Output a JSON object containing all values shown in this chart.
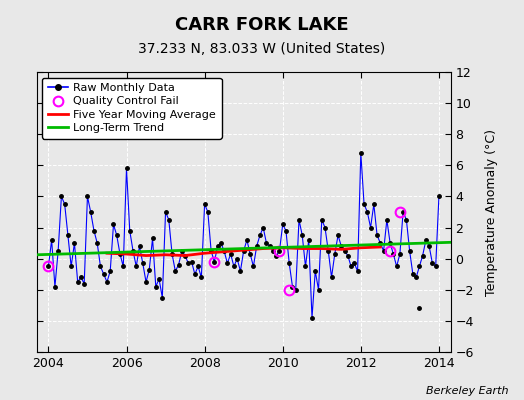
{
  "title": "CARR FORK LAKE",
  "subtitle": "37.233 N, 83.033 W (United States)",
  "ylabel": "Temperature Anomaly (°C)",
  "credit": "Berkeley Earth",
  "ylim": [
    -6,
    12
  ],
  "xlim": [
    2003.7,
    2014.3
  ],
  "yticks": [
    -6,
    -4,
    -2,
    0,
    2,
    4,
    6,
    8,
    10,
    12
  ],
  "xticks": [
    2004,
    2006,
    2008,
    2010,
    2012,
    2014
  ],
  "bg_color": "#e8e8e8",
  "raw_x": [
    2004.0,
    2004.083,
    2004.167,
    2004.25,
    2004.333,
    2004.417,
    2004.5,
    2004.583,
    2004.667,
    2004.75,
    2004.833,
    2004.917,
    2005.0,
    2005.083,
    2005.167,
    2005.25,
    2005.333,
    2005.417,
    2005.5,
    2005.583,
    2005.667,
    2005.75,
    2005.833,
    2005.917,
    2006.0,
    2006.083,
    2006.167,
    2006.25,
    2006.333,
    2006.417,
    2006.5,
    2006.583,
    2006.667,
    2006.75,
    2006.833,
    2006.917,
    2007.0,
    2007.083,
    2007.167,
    2007.25,
    2007.333,
    2007.417,
    2007.5,
    2007.583,
    2007.667,
    2007.75,
    2007.833,
    2007.917,
    2008.0,
    2008.083,
    2008.167,
    2008.25,
    2008.333,
    2008.417,
    2008.5,
    2008.583,
    2008.667,
    2008.75,
    2008.833,
    2008.917,
    2009.0,
    2009.083,
    2009.167,
    2009.25,
    2009.333,
    2009.417,
    2009.5,
    2009.583,
    2009.667,
    2009.75,
    2009.833,
    2009.917,
    2010.0,
    2010.083,
    2010.167,
    2010.25,
    2010.333,
    2010.417,
    2010.5,
    2010.583,
    2010.667,
    2010.75,
    2010.833,
    2010.917,
    2011.0,
    2011.083,
    2011.167,
    2011.25,
    2011.333,
    2011.417,
    2011.5,
    2011.583,
    2011.667,
    2011.75,
    2011.833,
    2011.917,
    2012.0,
    2012.083,
    2012.167,
    2012.25,
    2012.333,
    2012.417,
    2012.5,
    2012.583,
    2012.667,
    2012.75,
    2012.833,
    2012.917,
    2013.0,
    2013.083,
    2013.167,
    2013.25,
    2013.333,
    2013.417,
    2013.5,
    2013.583,
    2013.667,
    2013.75,
    2013.833,
    2013.917,
    2014.0
  ],
  "raw_y": [
    -0.5,
    1.2,
    -1.8,
    0.5,
    4.0,
    3.5,
    1.5,
    -0.5,
    1.0,
    -1.5,
    -1.2,
    -1.6,
    4.0,
    3.0,
    1.8,
    1.0,
    -0.5,
    -1.0,
    -1.5,
    -0.8,
    2.2,
    1.5,
    0.3,
    -0.5,
    5.8,
    1.8,
    0.5,
    -0.5,
    0.8,
    -0.3,
    -1.5,
    -0.7,
    1.3,
    -1.8,
    -1.3,
    -2.5,
    3.0,
    2.5,
    0.3,
    -0.8,
    -0.4,
    0.5,
    0.2,
    -0.3,
    -0.2,
    -1.0,
    -0.5,
    -1.2,
    3.5,
    3.0,
    0.5,
    -0.2,
    0.8,
    1.0,
    0.5,
    -0.3,
    0.3,
    -0.5,
    0.0,
    -0.8,
    0.5,
    1.2,
    0.3,
    -0.5,
    0.8,
    1.5,
    2.0,
    1.0,
    0.8,
    0.5,
    0.2,
    0.5,
    2.2,
    1.8,
    -0.3,
    -1.8,
    -2.0,
    2.5,
    1.5,
    -0.5,
    1.2,
    -3.8,
    -0.8,
    -2.0,
    2.5,
    2.0,
    0.5,
    -1.2,
    0.3,
    1.5,
    0.8,
    0.5,
    0.2,
    -0.5,
    -0.3,
    -0.8,
    6.8,
    3.5,
    3.0,
    2.0,
    3.5,
    1.5,
    1.0,
    0.5,
    2.5,
    1.0,
    0.3,
    -0.5,
    0.3,
    3.0,
    2.5,
    0.5,
    -1.0,
    -1.2,
    -0.5,
    0.2,
    1.2,
    0.8,
    -0.3,
    -0.5,
    4.0
  ],
  "qc_fail_x": [
    2004.0,
    2008.25,
    2009.917,
    2010.167,
    2012.75,
    2013.0
  ],
  "qc_fail_y": [
    -0.5,
    -0.2,
    0.5,
    -2.0,
    0.5,
    3.0
  ],
  "isolated_x": [
    2013.5
  ],
  "isolated_y": [
    -3.2
  ],
  "moving_avg_x": [
    2005.5,
    2006.0,
    2006.5,
    2007.0,
    2007.5,
    2008.0,
    2008.5,
    2009.0,
    2009.5,
    2010.0,
    2010.5,
    2011.0,
    2011.5,
    2012.0,
    2012.5
  ],
  "moving_avg_y": [
    0.35,
    0.3,
    0.2,
    0.25,
    0.2,
    0.35,
    0.45,
    0.55,
    0.65,
    0.7,
    0.65,
    0.65,
    0.6,
    0.7,
    0.75
  ],
  "trend_x": [
    2003.7,
    2014.3
  ],
  "trend_y": [
    0.25,
    1.05
  ],
  "raw_color": "#0000ff",
  "raw_marker_color": "#000000",
  "qc_color": "#ff00ff",
  "moving_avg_color": "#ff0000",
  "trend_color": "#00bb00",
  "title_fontsize": 13,
  "subtitle_fontsize": 10,
  "tick_fontsize": 9,
  "legend_fontsize": 8,
  "ylabel_fontsize": 9
}
